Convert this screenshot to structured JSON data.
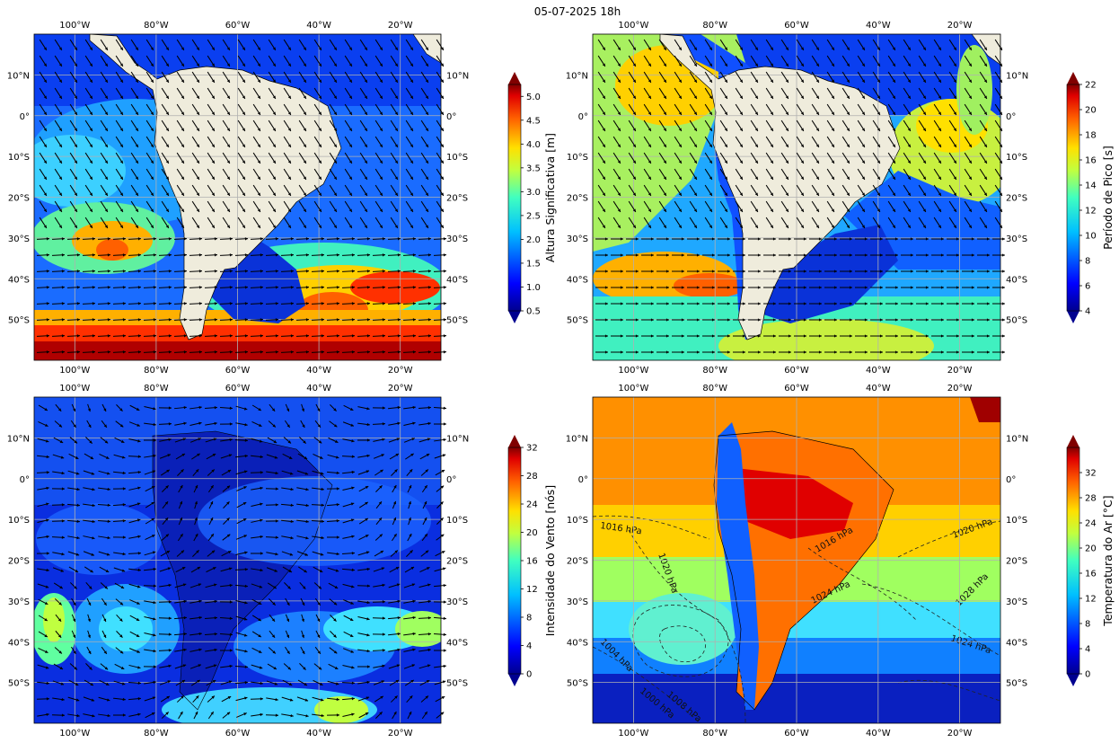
{
  "suptitle": "05-07-2025 18h",
  "map_ticks": {
    "lon_labels": [
      "100°W",
      "80°W",
      "60°W",
      "40°W",
      "20°W"
    ],
    "lat_labels": [
      "10°N",
      "0°",
      "10°S",
      "20°S",
      "30°S",
      "40°S",
      "50°S"
    ]
  },
  "lon_range": [
    -110,
    -10
  ],
  "lat_range": [
    -60,
    20
  ],
  "lon_ticks": [
    -100,
    -80,
    -60,
    -40,
    -20
  ],
  "lat_ticks": [
    10,
    0,
    -10,
    -20,
    -30,
    -40,
    -50
  ],
  "chart_data": [
    {
      "type": "heatmap",
      "panel": "top-left",
      "field": "significant wave height",
      "vectors": "wave direction arrows",
      "colorbar": {
        "label": "Altura Significativa [m]",
        "ticks": [
          "0.5",
          "1.0",
          "1.5",
          "2.0",
          "2.5",
          "3.0",
          "3.5",
          "4.0",
          "4.5",
          "5.0"
        ],
        "range": [
          0.5,
          5.25
        ],
        "extend": "both"
      },
      "grid": true
    },
    {
      "type": "heatmap",
      "panel": "top-right",
      "field": "peak wave period",
      "vectors": "wave direction arrows",
      "colorbar": {
        "label": "Período de Pico [s]",
        "ticks": [
          "4",
          "6",
          "8",
          "10",
          "12",
          "14",
          "16",
          "18",
          "20",
          "22"
        ],
        "range": [
          4,
          22
        ],
        "extend": "both"
      },
      "grid": true
    },
    {
      "type": "heatmap",
      "panel": "bottom-left",
      "field": "wind speed",
      "vectors": "wind direction arrows",
      "colorbar": {
        "label": "Intensidade do Vento [nós]",
        "ticks": [
          "0",
          "4",
          "8",
          "12",
          "16",
          "20",
          "24",
          "28",
          "32"
        ],
        "range": [
          0,
          32
        ],
        "extend": "both"
      },
      "grid": true
    },
    {
      "type": "heatmap",
      "panel": "bottom-right",
      "field": "air temperature with sea-level pressure isobars",
      "colorbar": {
        "label": "Temperatura do Ar [°C]",
        "ticks": [
          "0",
          "4",
          "8",
          "12",
          "16",
          "20",
          "24",
          "28",
          "32"
        ],
        "range": [
          0,
          36
        ],
        "extend": "both"
      },
      "contour_labels": [
        "1016 hPa",
        "1020 hPa",
        "1016 hPa",
        "1024 hPa",
        "1020 hPa",
        "1028 hPa",
        "1024 hPa",
        "1004 hPa",
        "1008 hPa",
        "1000 hPa"
      ],
      "grid": true
    }
  ],
  "colors": {
    "land": "#efecdc",
    "jet": [
      "#00007f",
      "#0000ff",
      "#007fff",
      "#00ffff",
      "#7fff7f",
      "#ffff00",
      "#ff7f00",
      "#ff0000",
      "#7f0000"
    ]
  }
}
